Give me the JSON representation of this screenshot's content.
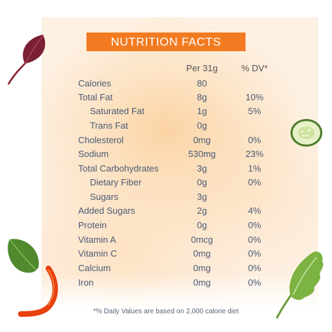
{
  "title": "NUTRITION FACTS",
  "columns": {
    "amount": "Per 31g",
    "dv": "% DV*"
  },
  "rows": [
    {
      "name": "Calories",
      "amount": "80",
      "dv": ""
    },
    {
      "name": "Total Fat",
      "amount": "8g",
      "dv": "10%"
    },
    {
      "name": "Saturated Fat",
      "amount": "1g",
      "dv": "5%"
    },
    {
      "name": "Trans Fat",
      "amount": "0g",
      "dv": ""
    },
    {
      "name": "Cholesterol",
      "amount": "0mg",
      "dv": "0%"
    },
    {
      "name": "Sodium",
      "amount": "530mg",
      "dv": "23%"
    },
    {
      "name": "Total Carbohydrates",
      "amount": "3g",
      "dv": "1%"
    },
    {
      "name": "Dietary Fiber",
      "amount": "0g",
      "dv": "0%"
    },
    {
      "name": "Sugars",
      "amount": "3g",
      "dv": ""
    },
    {
      "name": "Added Sugars",
      "amount": "2g",
      "dv": "4%"
    },
    {
      "name": "Protein",
      "amount": "0g",
      "dv": "0%"
    },
    {
      "name": "Vitamin A",
      "amount": "0mcg",
      "dv": "0%"
    },
    {
      "name": "Vitamin C",
      "amount": "0mg",
      "dv": "0%"
    },
    {
      "name": "Calcium",
      "amount": "0mg",
      "dv": "0%"
    },
    {
      "name": "Iron",
      "amount": "0mg",
      "dv": "0%"
    }
  ],
  "footnote": "*% Daily Values are based on 2,000 calorie diet",
  "decorations": [
    "beet-leaf-icon",
    "cucumber-slice-icon",
    "spinach-leaf-icon",
    "red-pepper-strip-icon",
    "lettuce-leaf-icon"
  ],
  "colors": {
    "accent": "#f27b21",
    "text": "#4b5a75",
    "background": "#fdf1e4"
  }
}
